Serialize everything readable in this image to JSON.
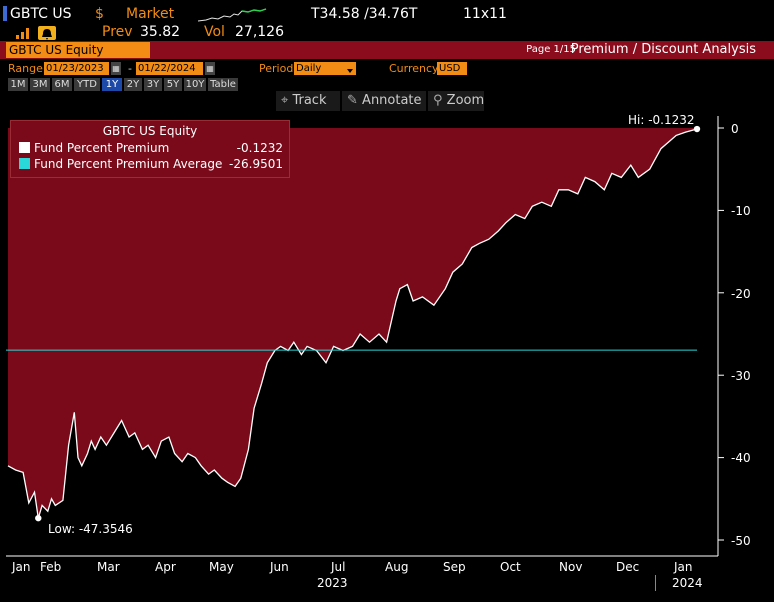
{
  "header": {
    "ticker": "GBTC US",
    "currency_symbol": "$",
    "market_label": "Market",
    "price_range": "T34.58 /34.76T",
    "size": "11x11",
    "prev_label": "Prev",
    "prev_value": "35.82",
    "vol_label": "Vol",
    "vol_value": "27,126"
  },
  "title_bar": {
    "security": "GBTC US Equity",
    "page": "Page 1/15",
    "title": "Premium / Discount Analysis"
  },
  "params": {
    "range_label": "Range",
    "start_date": "01/23/2023",
    "dash": "-",
    "end_date": "01/22/2024",
    "period_label": "Period",
    "period_value": "Daily",
    "currency_label": "Currency",
    "currency_value": "USD",
    "ranges": [
      "1M",
      "3M",
      "6M",
      "YTD",
      "1Y",
      "2Y",
      "3Y",
      "5Y",
      "10Y",
      "Table"
    ],
    "active_range": "1Y"
  },
  "toolbar": {
    "track": "Track",
    "annotate": "Annotate",
    "zoom": "Zoom"
  },
  "legend": {
    "title": "GBTC US Equity",
    "items": [
      {
        "label": "Fund Percent Premium",
        "value": "-0.1232",
        "color": "#ffffff"
      },
      {
        "label": "Fund Percent Premium Average",
        "value": "-26.9501",
        "color": "#29d8d8"
      }
    ]
  },
  "annotations": {
    "hi": "Hi: -0.1232",
    "low": "Low: -47.3546"
  },
  "chart_data": {
    "type": "area",
    "series": [
      {
        "name": "Fund Percent Premium",
        "x": [
          "2023-01-23",
          "2023-01-27",
          "2023-01-31",
          "2023-02-03",
          "2023-02-06",
          "2023-02-08",
          "2023-02-10",
          "2023-02-13",
          "2023-02-15",
          "2023-02-17",
          "2023-02-21",
          "2023-02-24",
          "2023-02-27",
          "2023-03-01",
          "2023-03-03",
          "2023-03-06",
          "2023-03-08",
          "2023-03-10",
          "2023-03-13",
          "2023-03-16",
          "2023-03-20",
          "2023-03-24",
          "2023-03-28",
          "2023-03-31",
          "2023-04-04",
          "2023-04-07",
          "2023-04-11",
          "2023-04-14",
          "2023-04-18",
          "2023-04-21",
          "2023-04-25",
          "2023-04-28",
          "2023-05-02",
          "2023-05-05",
          "2023-05-09",
          "2023-05-12",
          "2023-05-16",
          "2023-05-19",
          "2023-05-23",
          "2023-05-26",
          "2023-05-30",
          "2023-06-02",
          "2023-06-06",
          "2023-06-09",
          "2023-06-13",
          "2023-06-16",
          "2023-06-20",
          "2023-06-23",
          "2023-06-27",
          "2023-06-30",
          "2023-07-05",
          "2023-07-10",
          "2023-07-14",
          "2023-07-19",
          "2023-07-24",
          "2023-07-28",
          "2023-08-02",
          "2023-08-07",
          "2023-08-11",
          "2023-08-16",
          "2023-08-18",
          "2023-08-22",
          "2023-08-25",
          "2023-08-30",
          "2023-09-05",
          "2023-09-11",
          "2023-09-15",
          "2023-09-20",
          "2023-09-25",
          "2023-09-29",
          "2023-10-04",
          "2023-10-09",
          "2023-10-13",
          "2023-10-18",
          "2023-10-23",
          "2023-10-27",
          "2023-11-01",
          "2023-11-06",
          "2023-11-10",
          "2023-11-15",
          "2023-11-20",
          "2023-11-24",
          "2023-11-29",
          "2023-12-04",
          "2023-12-08",
          "2023-12-13",
          "2023-12-18",
          "2023-12-22",
          "2023-12-28",
          "2024-01-03",
          "2024-01-08",
          "2024-01-11",
          "2024-01-16",
          "2024-01-22"
        ],
        "values": [
          -41.0,
          -41.5,
          -41.8,
          -45.5,
          -44.2,
          -47.35,
          -45.8,
          -46.5,
          -45.0,
          -45.8,
          -45.2,
          -38.5,
          -34.5,
          -40.0,
          -41.0,
          -39.5,
          -38.0,
          -39.0,
          -37.5,
          -38.5,
          -37.0,
          -35.5,
          -37.5,
          -37.0,
          -39.0,
          -38.5,
          -40.0,
          -38.0,
          -37.5,
          -39.5,
          -40.5,
          -39.5,
          -40.0,
          -41.0,
          -42.0,
          -41.5,
          -42.5,
          -43.0,
          -43.5,
          -42.5,
          -39.0,
          -34.0,
          -31.0,
          -28.5,
          -27.0,
          -26.5,
          -27.0,
          -26.0,
          -27.5,
          -26.5,
          -27.0,
          -28.5,
          -26.5,
          -27.0,
          -26.5,
          -25.0,
          -26.0,
          -25.0,
          -26.0,
          -21.0,
          -19.5,
          -19.0,
          -21.0,
          -20.5,
          -21.5,
          -19.5,
          -17.5,
          -16.5,
          -14.5,
          -14.0,
          -13.5,
          -12.5,
          -11.5,
          -10.5,
          -11.0,
          -9.5,
          -9.0,
          -9.5,
          -7.5,
          -7.5,
          -8.0,
          -6.0,
          -6.5,
          -7.5,
          -5.5,
          -6.0,
          -4.5,
          -6.0,
          -5.0,
          -2.5,
          -1.5,
          -0.9,
          -0.5,
          -0.1232
        ]
      },
      {
        "name": "Fund Percent Premium Average",
        "values": [
          -26.9501
        ]
      }
    ],
    "xlabel": "",
    "ylabel": "",
    "ylim": [
      -50,
      0
    ],
    "yticks": [
      "0",
      "-10",
      "-20",
      "-30",
      "-40",
      "-50"
    ],
    "xticks": [
      "Jan",
      "Feb",
      "Mar",
      "Apr",
      "May",
      "Jun",
      "Jul",
      "Aug",
      "Sep",
      "Oct",
      "Nov",
      "Dec",
      "Jan"
    ],
    "year_labels": [
      "2023",
      "2024"
    ],
    "colors": {
      "fill": "#7a0a19",
      "line": "#ffffff",
      "average": "#29d8d8",
      "background": "#000000"
    }
  }
}
